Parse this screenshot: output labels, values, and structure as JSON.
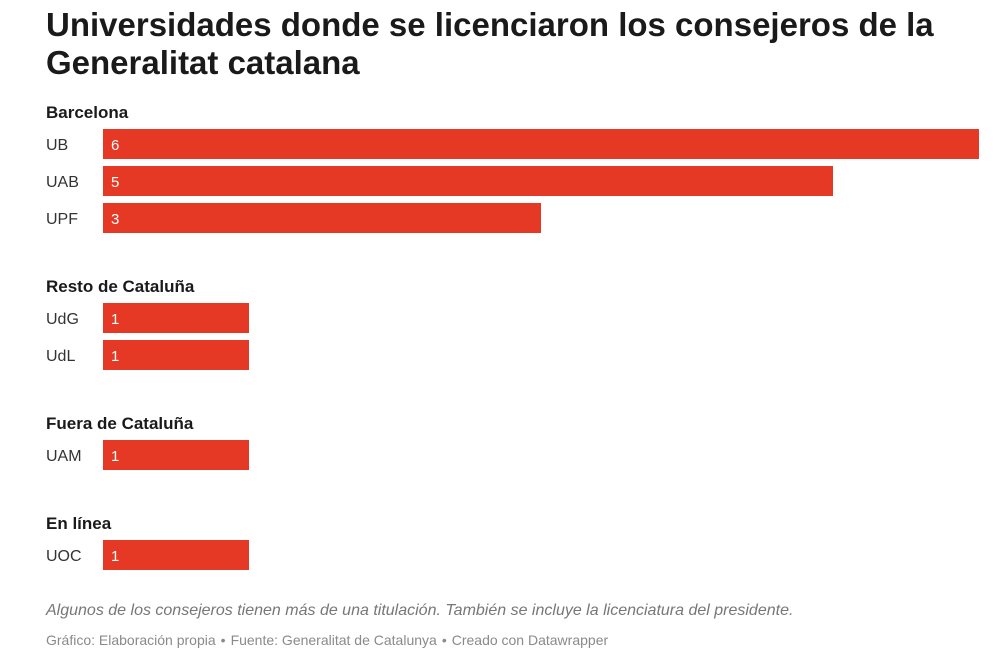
{
  "title": "Universidades donde se licenciaron los consejeros de la Generalitat catalana",
  "colors": {
    "bar": "#e53925",
    "bar_text": "#ffffff",
    "label": "#333333"
  },
  "chart_data": {
    "type": "bar",
    "orientation": "horizontal",
    "xlim": [
      0,
      6
    ],
    "groups": [
      {
        "name": "Barcelona",
        "categories": [
          "UB",
          "UAB",
          "UPF"
        ],
        "values": [
          6,
          5,
          3
        ]
      },
      {
        "name": "Resto de Cataluña",
        "categories": [
          "UdG",
          "UdL"
        ],
        "values": [
          1,
          1
        ]
      },
      {
        "name": "Fuera de Cataluña",
        "categories": [
          "UAM"
        ],
        "values": [
          1
        ]
      },
      {
        "name": "En línea",
        "categories": [
          "UOC"
        ],
        "values": [
          1
        ]
      }
    ]
  },
  "footer": {
    "note": "Algunos de los consejeros tienen más de una titulación. También se incluye la licenciatura del presidente.",
    "graphic": "Gráfico: Elaboración propia",
    "source": "Fuente: Generalitat de Catalunya",
    "created": "Creado con Datawrapper",
    "separator": "•"
  }
}
